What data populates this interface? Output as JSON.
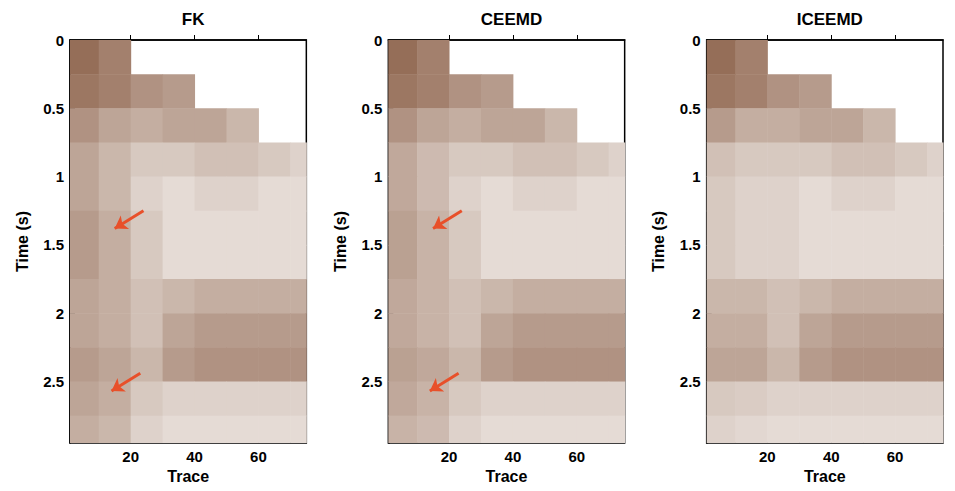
{
  "chart_data": [
    {
      "type": "heatmap",
      "title": "FK",
      "x_label": "Trace",
      "y_label": "Time (s)",
      "xlim": [
        1,
        75
      ],
      "ylim": [
        0,
        2.95
      ],
      "xticks": [
        20,
        40,
        60
      ],
      "yticks": [
        0,
        0.5,
        1,
        1.5,
        2,
        2.5
      ],
      "color": "#7b4a2e",
      "zlim": [
        0,
        1
      ],
      "trace_edges": [
        1,
        10,
        20,
        30,
        40,
        50,
        60,
        70,
        75
      ],
      "time_edges": [
        0,
        0.25,
        0.5,
        0.75,
        1,
        1.25,
        1.5,
        1.75,
        2,
        2.25,
        2.5,
        2.75,
        2.95
      ],
      "values": [
        [
          0.8,
          0.7,
          null,
          null,
          null,
          null,
          null,
          null
        ],
        [
          0.75,
          0.7,
          0.6,
          0.55,
          null,
          null,
          null,
          null
        ],
        [
          0.6,
          0.5,
          0.45,
          0.5,
          0.5,
          0.4,
          null,
          null
        ],
        [
          0.5,
          0.4,
          0.3,
          0.3,
          0.35,
          0.35,
          0.3,
          0.25
        ],
        [
          0.5,
          0.4,
          0.25,
          0.2,
          0.25,
          0.25,
          0.2,
          0.2
        ],
        [
          0.55,
          0.45,
          0.3,
          0.2,
          0.2,
          0.2,
          0.2,
          0.2
        ],
        [
          0.55,
          0.45,
          0.3,
          0.2,
          0.2,
          0.2,
          0.2,
          0.2
        ],
        [
          0.5,
          0.45,
          0.35,
          0.4,
          0.45,
          0.45,
          0.45,
          0.45
        ],
        [
          0.5,
          0.45,
          0.35,
          0.5,
          0.55,
          0.55,
          0.55,
          0.55
        ],
        [
          0.55,
          0.5,
          0.4,
          0.55,
          0.6,
          0.6,
          0.6,
          0.6
        ],
        [
          0.5,
          0.45,
          0.3,
          0.25,
          0.25,
          0.25,
          0.25,
          0.25
        ],
        [
          0.45,
          0.4,
          0.25,
          0.2,
          0.2,
          0.2,
          0.2,
          0.2
        ]
      ],
      "annotations": [
        {
          "type": "arrow",
          "from": [
            24,
            1.25
          ],
          "to": [
            15,
            1.38
          ],
          "color": "#e8502a"
        },
        {
          "type": "arrow",
          "from": [
            23,
            2.44
          ],
          "to": [
            14,
            2.57
          ],
          "color": "#e8502a"
        }
      ]
    },
    {
      "type": "heatmap",
      "title": "CEEMD",
      "x_label": "Trace",
      "y_label": "Time (s)",
      "xlim": [
        1,
        75
      ],
      "ylim": [
        0,
        2.95
      ],
      "xticks": [
        20,
        40,
        60
      ],
      "yticks": [
        0,
        0.5,
        1,
        1.5,
        2,
        2.5
      ],
      "color": "#7b4a2e",
      "zlim": [
        0,
        1
      ],
      "trace_edges": [
        1,
        10,
        20,
        30,
        40,
        50,
        60,
        70,
        75
      ],
      "time_edges": [
        0,
        0.25,
        0.5,
        0.75,
        1,
        1.25,
        1.5,
        1.75,
        2,
        2.25,
        2.5,
        2.75,
        2.95
      ],
      "values": [
        [
          0.8,
          0.7,
          null,
          null,
          null,
          null,
          null,
          null
        ],
        [
          0.75,
          0.7,
          0.6,
          0.55,
          null,
          null,
          null,
          null
        ],
        [
          0.6,
          0.5,
          0.45,
          0.5,
          0.5,
          0.4,
          null,
          null
        ],
        [
          0.48,
          0.38,
          0.3,
          0.3,
          0.35,
          0.35,
          0.3,
          0.25
        ],
        [
          0.48,
          0.38,
          0.25,
          0.2,
          0.25,
          0.25,
          0.2,
          0.2
        ],
        [
          0.52,
          0.42,
          0.3,
          0.2,
          0.2,
          0.2,
          0.2,
          0.2
        ],
        [
          0.52,
          0.42,
          0.3,
          0.2,
          0.2,
          0.2,
          0.2,
          0.2
        ],
        [
          0.48,
          0.42,
          0.35,
          0.4,
          0.45,
          0.45,
          0.45,
          0.45
        ],
        [
          0.48,
          0.42,
          0.35,
          0.5,
          0.55,
          0.55,
          0.55,
          0.55
        ],
        [
          0.52,
          0.48,
          0.4,
          0.55,
          0.6,
          0.6,
          0.6,
          0.6
        ],
        [
          0.48,
          0.42,
          0.3,
          0.25,
          0.25,
          0.25,
          0.25,
          0.25
        ],
        [
          0.42,
          0.38,
          0.25,
          0.2,
          0.2,
          0.2,
          0.2,
          0.2
        ]
      ],
      "annotations": [
        {
          "type": "arrow",
          "from": [
            24,
            1.25
          ],
          "to": [
            15,
            1.38
          ],
          "color": "#e8502a"
        },
        {
          "type": "arrow",
          "from": [
            23,
            2.44
          ],
          "to": [
            14,
            2.57
          ],
          "color": "#e8502a"
        }
      ]
    },
    {
      "type": "heatmap",
      "title": "ICEEMD",
      "x_label": "Trace",
      "y_label": "Time (s)",
      "xlim": [
        1,
        75
      ],
      "ylim": [
        0,
        2.95
      ],
      "xticks": [
        20,
        40,
        60
      ],
      "yticks": [
        0,
        0.5,
        1,
        1.5,
        2,
        2.5
      ],
      "color": "#7b4a2e",
      "zlim": [
        0,
        1
      ],
      "trace_edges": [
        1,
        10,
        20,
        30,
        40,
        50,
        60,
        70,
        75
      ],
      "time_edges": [
        0,
        0.25,
        0.5,
        0.75,
        1,
        1.25,
        1.5,
        1.75,
        2,
        2.25,
        2.5,
        2.75,
        2.95
      ],
      "values": [
        [
          0.8,
          0.7,
          null,
          null,
          null,
          null,
          null,
          null
        ],
        [
          0.75,
          0.7,
          0.6,
          0.55,
          null,
          null,
          null,
          null
        ],
        [
          0.55,
          0.45,
          0.45,
          0.5,
          0.5,
          0.4,
          null,
          null
        ],
        [
          0.35,
          0.3,
          0.3,
          0.3,
          0.35,
          0.35,
          0.3,
          0.25
        ],
        [
          0.3,
          0.25,
          0.25,
          0.2,
          0.25,
          0.25,
          0.2,
          0.2
        ],
        [
          0.3,
          0.25,
          0.25,
          0.2,
          0.2,
          0.2,
          0.2,
          0.2
        ],
        [
          0.3,
          0.25,
          0.25,
          0.2,
          0.2,
          0.2,
          0.2,
          0.2
        ],
        [
          0.4,
          0.4,
          0.35,
          0.4,
          0.45,
          0.45,
          0.45,
          0.45
        ],
        [
          0.45,
          0.45,
          0.35,
          0.5,
          0.55,
          0.55,
          0.55,
          0.55
        ],
        [
          0.5,
          0.5,
          0.4,
          0.55,
          0.6,
          0.6,
          0.6,
          0.6
        ],
        [
          0.3,
          0.28,
          0.25,
          0.25,
          0.25,
          0.25,
          0.25,
          0.25
        ],
        [
          0.25,
          0.22,
          0.2,
          0.2,
          0.2,
          0.2,
          0.2,
          0.2
        ]
      ],
      "annotations": []
    }
  ]
}
